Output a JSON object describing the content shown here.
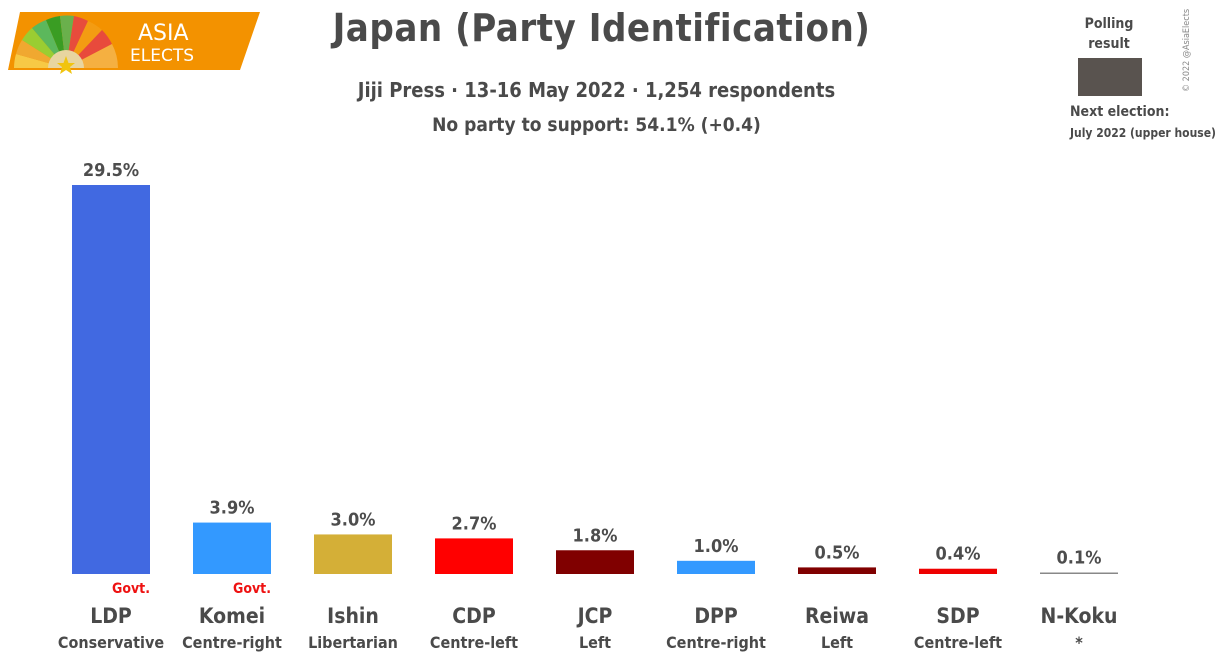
{
  "logo": {
    "line1": "ASIA",
    "line2": "ELECTS"
  },
  "header": {
    "title": "Japan (Party Identification)",
    "subtitle": "Jiji Press · 13-16 May 2022 · 1,254 respondents",
    "note": "No party to support: 54.1% (+0.4)"
  },
  "legend": {
    "title_line1": "Polling",
    "title_line2": "result",
    "swatch_color": "#59534f",
    "next_label": "Next election:",
    "next_value": "July 2022 (upper house)"
  },
  "copyright": "© 2022 @AsiaElects",
  "chart_data": {
    "type": "bar",
    "title": "Japan (Party Identification)",
    "ylim": [
      0,
      30
    ],
    "unit": "%",
    "categories": [
      "LDP",
      "Komei",
      "Ishin",
      "CDP",
      "JCP",
      "DPP",
      "Reiwa",
      "SDP",
      "N-Koku"
    ],
    "ideologies": [
      "Conservative",
      "Centre-right",
      "Libertarian",
      "Centre-left",
      "Left",
      "Centre-right",
      "Left",
      "Centre-left",
      "*"
    ],
    "values": [
      29.5,
      3.9,
      3.0,
      2.7,
      1.8,
      1.0,
      0.5,
      0.4,
      0.1
    ],
    "value_labels": [
      "29.5%",
      "3.9%",
      "3.0%",
      "2.7%",
      "1.8%",
      "1.0%",
      "0.5%",
      "0.4%",
      "0.1%"
    ],
    "govt": [
      true,
      true,
      false,
      false,
      false,
      false,
      false,
      false,
      false
    ],
    "govt_label": "Govt.",
    "colors": [
      "#4169e1",
      "#3399ff",
      "#d4af37",
      "#ff0000",
      "#800000",
      "#3399ff",
      "#800000",
      "#ee0000",
      "#888888"
    ]
  }
}
